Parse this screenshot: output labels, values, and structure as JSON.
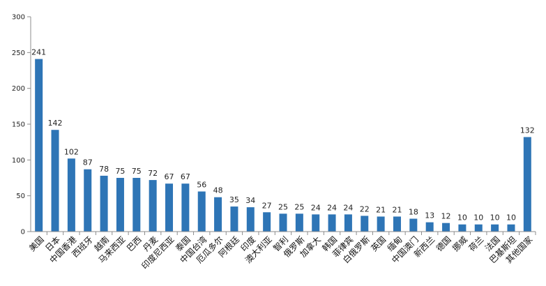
{
  "chart_data": {
    "type": "bar",
    "title": "",
    "xlabel": "",
    "ylabel": "",
    "ylim": [
      0,
      300
    ],
    "yticks": [
      0,
      50,
      100,
      150,
      200,
      250,
      300
    ],
    "grid": false,
    "legend": "none",
    "bar_color": "#2e75b6",
    "categories": [
      "美国",
      "日本",
      "中国香港",
      "西班牙",
      "越南",
      "马来西亚",
      "巴西",
      "丹麦",
      "印度尼西亚",
      "泰国",
      "中国台湾",
      "厄瓜多尔",
      "阿根廷",
      "印度",
      "澳大利亚",
      "智利",
      "俄罗斯",
      "加拿大",
      "韩国",
      "菲律宾",
      "白俄罗斯",
      "英国",
      "缅甸",
      "中国澳门",
      "新西兰",
      "德国",
      "挪威",
      "荷兰",
      "法国",
      "巴基斯坦",
      "其他国家"
    ],
    "values": [
      241,
      142,
      102,
      87,
      78,
      75,
      75,
      72,
      67,
      67,
      56,
      48,
      35,
      34,
      27,
      25,
      25,
      24,
      24,
      24,
      22,
      21,
      21,
      18,
      13,
      12,
      10,
      10,
      10,
      10,
      132
    ]
  }
}
